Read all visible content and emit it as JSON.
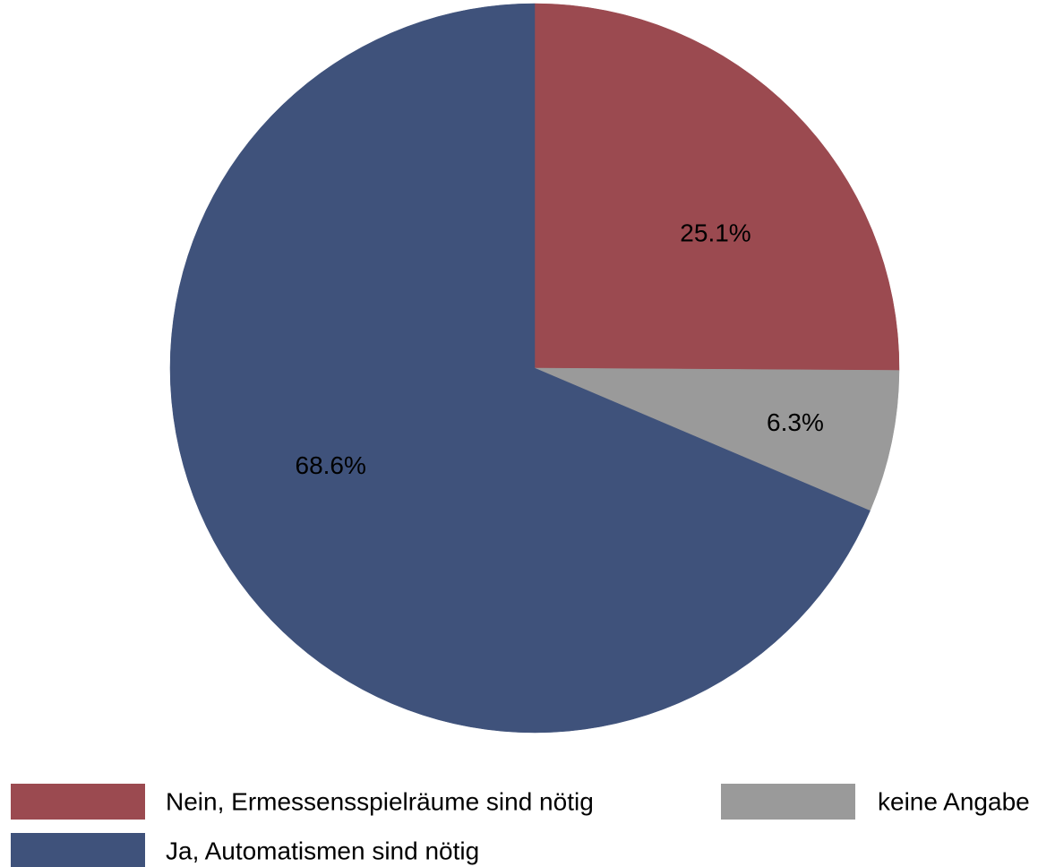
{
  "chart_data": {
    "type": "pie",
    "categories": [
      "Nein, Ermessensspielräume sind nötig",
      "keine Angabe",
      "Ja, Automatismen sind nötig"
    ],
    "values": [
      25.1,
      6.3,
      68.6
    ],
    "value_labels": [
      "25.1%",
      "6.3%",
      "68.6%"
    ],
    "colors": [
      "#9b4a50",
      "#9a9a9a",
      "#3f527b"
    ],
    "start_angle": "12 o'clock",
    "direction": "clockwise",
    "legend_placement": "bottom",
    "title": ""
  }
}
